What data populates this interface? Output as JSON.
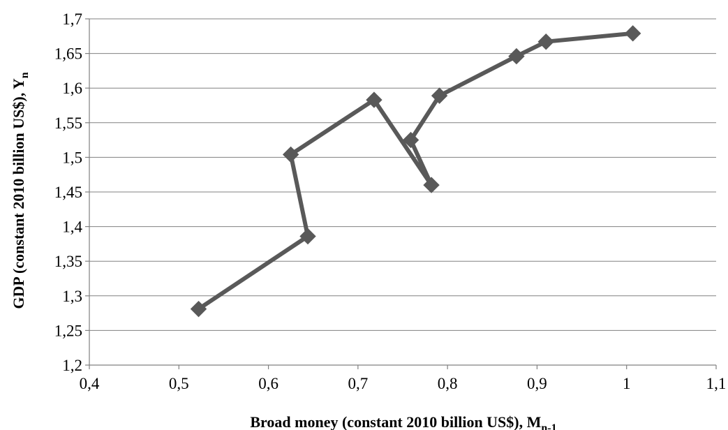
{
  "chart_data": {
    "type": "line",
    "xlabel": "Broad money (constant 2010 billion US$), M",
    "xlabel_sub": "n-1",
    "ylabel": "GDP (constant 2010 billion US$), Y",
    "ylabel_sub": "n",
    "xlim": [
      0.4,
      1.1
    ],
    "ylim": [
      1.2,
      1.7
    ],
    "x_ticks": [
      "0,4",
      "0,5",
      "0,6",
      "0,7",
      "0,8",
      "0,9",
      "1",
      "1,1"
    ],
    "x_tick_values": [
      0.4,
      0.5,
      0.6,
      0.7,
      0.8,
      0.9,
      1.0,
      1.1
    ],
    "y_ticks": [
      "1,2",
      "1,25",
      "1,3",
      "1,35",
      "1,4",
      "1,45",
      "1,5",
      "1,55",
      "1,6",
      "1,65",
      "1,7"
    ],
    "y_tick_values": [
      1.2,
      1.25,
      1.3,
      1.35,
      1.4,
      1.45,
      1.5,
      1.55,
      1.6,
      1.65,
      1.7
    ],
    "grid": true,
    "series": [
      {
        "color": "#595959",
        "marker": "diamond",
        "x": [
          0.522,
          0.644,
          0.625,
          0.718,
          0.782,
          0.759,
          0.791,
          0.877,
          0.91,
          1.007
        ],
        "y": [
          1.281,
          1.386,
          1.504,
          1.583,
          1.46,
          1.525,
          1.589,
          1.646,
          1.667,
          1.679
        ]
      }
    ]
  }
}
